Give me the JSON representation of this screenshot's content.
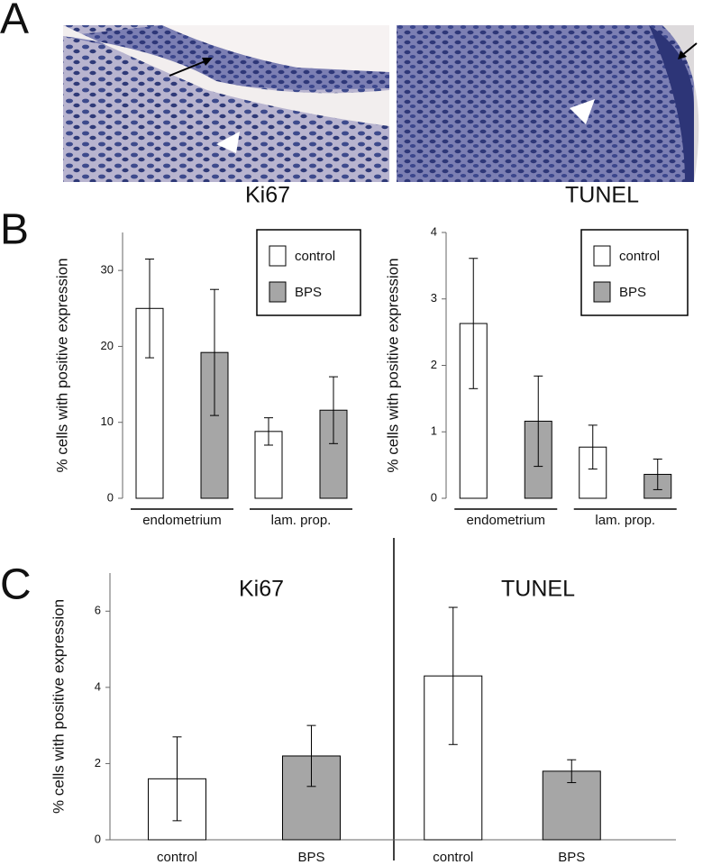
{
  "panel_labels": [
    "A",
    "B",
    "C"
  ],
  "chart_data": [
    {
      "type": "bar",
      "title": "Ki67",
      "y_label": "% cells with positive expression",
      "categories": [
        "endometrium",
        "lam. prop."
      ],
      "series": [
        {
          "name": "control",
          "color": "#ffffff",
          "values": [
            25,
            8.8
          ],
          "errors": [
            6.5,
            1.8
          ]
        },
        {
          "name": "BPS",
          "color": "#a6a6a6",
          "values": [
            19.2,
            11.6
          ],
          "errors": [
            8.3,
            4.4
          ]
        }
      ],
      "ylim": [
        0,
        35
      ],
      "yticks": [
        0,
        10,
        20,
        30
      ],
      "legend": "upper right"
    },
    {
      "type": "bar",
      "title": "TUNEL",
      "y_label": "% cells with positive expression",
      "categories": [
        "endometrium",
        "lam. prop."
      ],
      "series": [
        {
          "name": "control",
          "color": "#ffffff",
          "values": [
            2.63,
            0.77
          ],
          "errors": [
            0.98,
            0.33
          ]
        },
        {
          "name": "BPS",
          "color": "#a6a6a6",
          "values": [
            1.16,
            0.36
          ],
          "errors": [
            0.68,
            0.23
          ]
        }
      ],
      "ylim": [
        0,
        4
      ],
      "yticks": [
        0,
        1,
        2,
        3,
        4
      ],
      "legend": "upper right"
    },
    {
      "type": "bar",
      "title": "Ki67",
      "y_label": "% cells with positive expression",
      "categories": [
        "control",
        "BPS"
      ],
      "series": [
        {
          "colors": [
            "#ffffff",
            "#a6a6a6"
          ],
          "values": [
            1.6,
            2.2
          ],
          "errors": [
            1.1,
            0.8
          ]
        }
      ],
      "ylim": [
        0,
        7
      ],
      "yticks": [
        0,
        2,
        4,
        6
      ]
    },
    {
      "type": "bar",
      "title": "TUNEL",
      "categories": [
        "control",
        "BPS"
      ],
      "series": [
        {
          "colors": [
            "#ffffff",
            "#a6a6a6"
          ],
          "values": [
            4.3,
            1.8
          ],
          "errors": [
            1.8,
            0.3
          ]
        }
      ],
      "ylim": [
        0,
        7
      ]
    }
  ]
}
